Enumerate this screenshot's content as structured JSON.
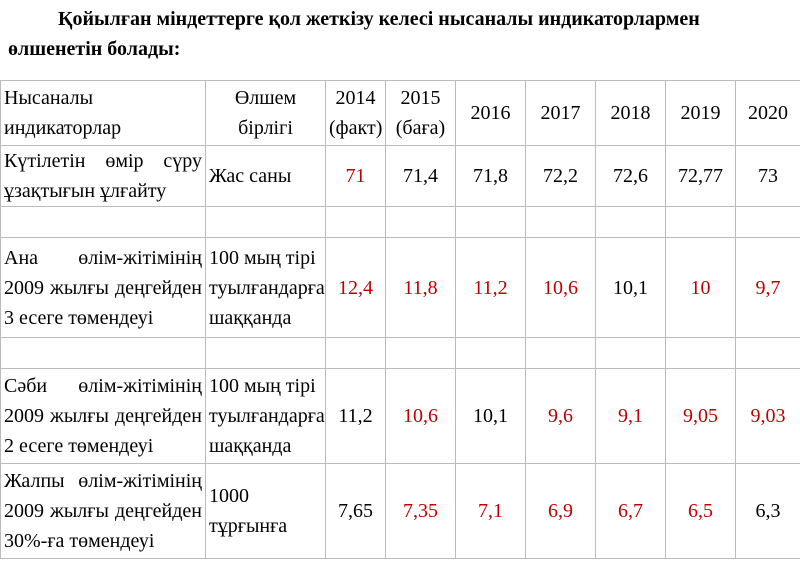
{
  "heading": "Қойылған міндеттерге қол жеткізу келесі нысаналы индикаторлармен өлшенетін болады:",
  "table": {
    "header": {
      "label": [
        "Нысаналы",
        "индикаторлар"
      ],
      "unit": [
        "Өлшем",
        "бірлігі"
      ],
      "years": [
        [
          "2014",
          "(факт)"
        ],
        [
          "2015",
          "(баға)"
        ],
        [
          "2016"
        ],
        [
          "2017"
        ],
        [
          "2018"
        ],
        [
          "2019"
        ],
        [
          "2020"
        ]
      ]
    },
    "rows": [
      {
        "label": [
          "Күтілетін өмір сүру",
          "ұзақтығын ұлғайту"
        ],
        "unit": [
          "Жас саны"
        ],
        "values": [
          "71",
          "71,4",
          "71,8",
          "72,2",
          "72,6",
          "72,77",
          "73"
        ],
        "colors": [
          "#c00000",
          "#000000",
          "#000000",
          "#000000",
          "#000000",
          "#000000",
          "#000000"
        ]
      },
      {
        "label": [
          "Ана өлім-жітімінің",
          "2009 жылғы деңгейден",
          "3 есеге төмендеуі"
        ],
        "unit": [
          "100 мың тірі",
          "туылғандарға",
          "шаққанда"
        ],
        "values": [
          "12,4",
          "11,8",
          "11,2",
          "10,6",
          "10,1",
          "10",
          "9,7"
        ],
        "colors": [
          "#c00000",
          "#c00000",
          "#c00000",
          "#c00000",
          "#000000",
          "#c00000",
          "#c00000"
        ]
      },
      {
        "label": [
          "Сәби өлім-жітімінің",
          "2009 жылғы деңгейден",
          "2 есеге төмендеуі"
        ],
        "unit": [
          "100 мың тірі",
          "туылғандарға",
          "шаққанда"
        ],
        "values": [
          "11,2",
          "10,6",
          "10,1",
          "9,6",
          "9,1",
          "9,05",
          "9,03"
        ],
        "colors": [
          "#000000",
          "#c00000",
          "#000000",
          "#c00000",
          "#c00000",
          "#c00000",
          "#c00000"
        ]
      },
      {
        "label": [
          "Жалпы өлім-жітімінің",
          "2009 жылғы деңгейден",
          "30%-ға төмендеуі"
        ],
        "unit": [
          "1000",
          "тұрғынға"
        ],
        "values": [
          "7,65",
          "7,35",
          "7,1",
          "6,9",
          "6,7",
          "6,5",
          "6,3"
        ],
        "colors": [
          "#000000",
          "#c00000",
          "#c00000",
          "#c00000",
          "#c00000",
          "#c00000",
          "#000000"
        ]
      }
    ]
  }
}
